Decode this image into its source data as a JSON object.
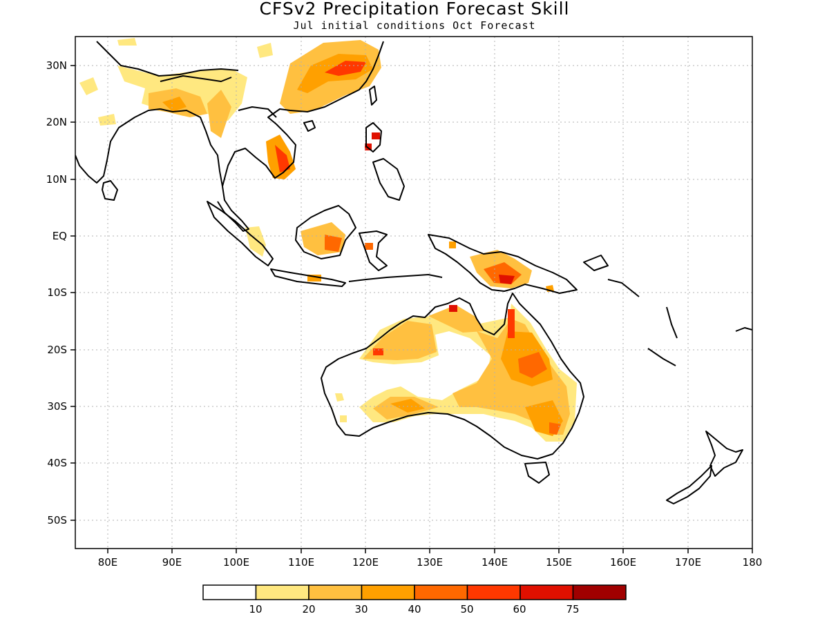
{
  "title": "CFSv2 Precipitation Forecast Skill",
  "subtitle": "Jul initial conditions  Oct Forecast",
  "map": {
    "lon_range": [
      75,
      180
    ],
    "lat_range": [
      -55,
      35
    ],
    "lon_ticks": [
      "80E",
      "90E",
      "100E",
      "110E",
      "120E",
      "130E",
      "140E",
      "150E",
      "160E",
      "170E",
      "180"
    ],
    "lon_tick_values": [
      80,
      90,
      100,
      110,
      120,
      130,
      140,
      150,
      160,
      170,
      180
    ],
    "lat_ticks": [
      "30N",
      "20N",
      "10N",
      "EQ",
      "10S",
      "20S",
      "30S",
      "40S",
      "50S"
    ],
    "lat_tick_values": [
      30,
      20,
      10,
      0,
      -10,
      -20,
      -30,
      -40,
      -50
    ],
    "gridlines": "dotted"
  },
  "colorbar": {
    "labels": [
      "10",
      "20",
      "30",
      "40",
      "50",
      "60",
      "75"
    ],
    "colors": [
      "#ffffff",
      "#ffe880",
      "#ffc040",
      "#ffa000",
      "#ff6800",
      "#ff3800",
      "#e01000",
      "#a00000"
    ]
  }
}
